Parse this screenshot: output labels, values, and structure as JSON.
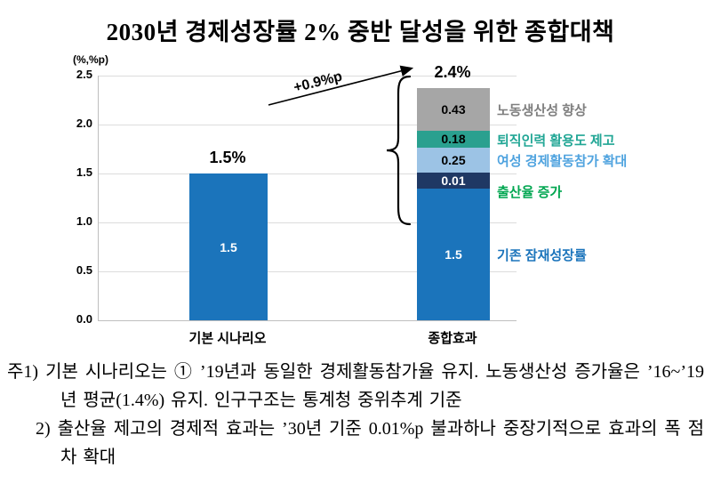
{
  "title": "2030년 경제성장률 2% 중반 달성을 위한 종합대책",
  "chart_data": {
    "type": "bar",
    "stacked": true,
    "unit_label": "(%,%p)",
    "ylim": [
      0,
      2.5
    ],
    "yticks": [
      "0.0",
      "0.5",
      "1.0",
      "1.5",
      "2.0",
      "2.5"
    ],
    "grid": true,
    "categories": [
      "기본 시나리오",
      "종합효과"
    ],
    "bars": [
      {
        "category": "기본 시나리오",
        "total_label": "1.5%",
        "segments": [
          {
            "name": "기존 잠재성장률",
            "value": 1.5,
            "value_label": "1.5",
            "color": "#1B74BB",
            "text_color": "#ffffff"
          }
        ]
      },
      {
        "category": "종합효과",
        "total_label": "2.4%",
        "segments": [
          {
            "name": "기존 잠재성장률",
            "value": 1.5,
            "value_label": "1.5",
            "color": "#1B74BB",
            "text_color": "#ffffff"
          },
          {
            "name": "출산율 증가",
            "value": 0.01,
            "value_label": "0.01",
            "color": "#1F3864",
            "text_color": "#ffffff"
          },
          {
            "name": "여성 경제활동참가 확대",
            "value": 0.25,
            "value_label": "0.25",
            "color": "#9CC3E5",
            "text_color": "#000000"
          },
          {
            "name": "퇴직인력 활용도 제고",
            "value": 0.18,
            "value_label": "0.18",
            "color": "#2AA08F",
            "text_color": "#000000"
          },
          {
            "name": "노동생산성 향상",
            "value": 0.43,
            "value_label": "0.43",
            "color": "#A6A6A6",
            "text_color": "#000000"
          }
        ]
      }
    ],
    "annotations": {
      "arrow_label": "+0.9%p",
      "segment_labels": [
        {
          "text": "노동생산성 향상",
          "color": "#7F7F7F"
        },
        {
          "text": "퇴직인력 활용도 제고",
          "color": "#21A695"
        },
        {
          "text": "여성 경제활동참가 확대",
          "color": "#4FA3DF"
        },
        {
          "text": "출산율 증가",
          "color": "#00A650"
        },
        {
          "text": "기존 잠재성장률",
          "color": "#1B74BB"
        }
      ]
    }
  },
  "notes": [
    {
      "prefix": "주1)",
      "text": "기본 시나리오는 ① ’19년과 동일한 경제활동참가율 유지. 노동생산성 증가율은 ’16~’19년 평균(1.4%) 유지. 인구구조는 통계청 중위추계 기준"
    },
    {
      "prefix": "2)",
      "text": "출산율 제고의 경제적 효과는 ’30년 기준 0.01%p 불과하나 중장기적으로 효과의 폭 점차 확대"
    }
  ]
}
